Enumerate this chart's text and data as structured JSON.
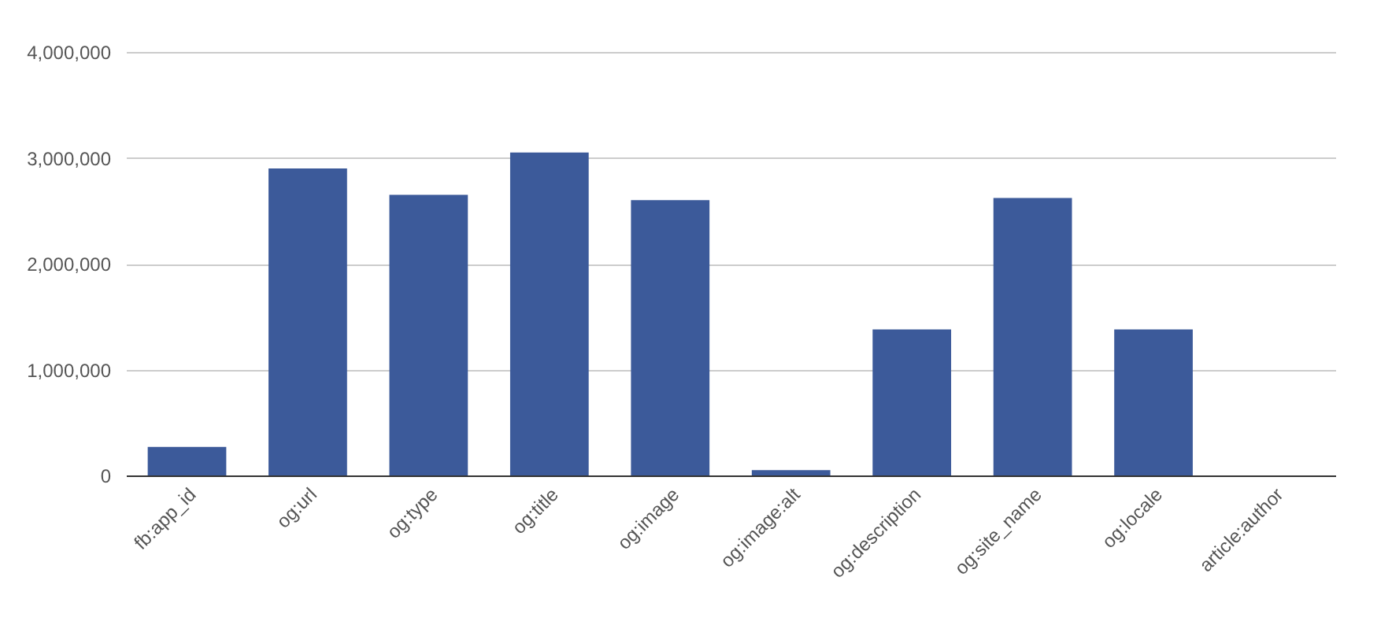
{
  "chart_data": {
    "type": "bar",
    "categories": [
      "fb:app_id",
      "og:url",
      "og:type",
      "og:title",
      "og:image",
      "og:image:alt",
      "og:description",
      "og:site_name",
      "og:locale",
      "article:author"
    ],
    "values": [
      270000,
      2900000,
      2650000,
      3050000,
      2600000,
      50000,
      1380000,
      2620000,
      1380000,
      0
    ],
    "color": "#3c5a9a",
    "ylim": [
      0,
      4000000
    ],
    "yticks": [
      {
        "value": 0,
        "label": "0"
      },
      {
        "value": 1000000,
        "label": "1,000,000"
      },
      {
        "value": 2000000,
        "label": "2,000,000"
      },
      {
        "value": 3000000,
        "label": "3,000,000"
      },
      {
        "value": 4000000,
        "label": "4,000,000"
      }
    ],
    "grid": "y"
  }
}
